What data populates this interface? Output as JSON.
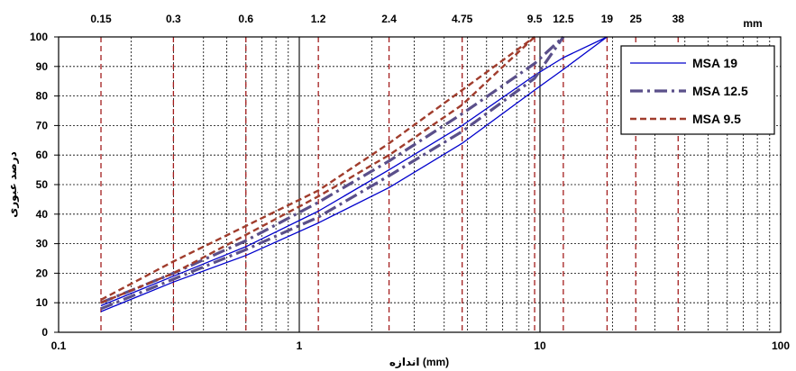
{
  "chart_data": {
    "type": "line",
    "xscale": "log",
    "xlim": [
      0.1,
      100
    ],
    "ylim": [
      0,
      100
    ],
    "xlabel": "اندازه (mm)",
    "ylabel": "درصد عبوری",
    "x_ticks": [
      "0.1",
      "1",
      "10",
      "100"
    ],
    "y_ticks": [
      "0",
      "10",
      "20",
      "30",
      "40",
      "50",
      "60",
      "70",
      "80",
      "90",
      "100"
    ],
    "top_unit": "mm",
    "sieve_sizes": [
      {
        "value": 0.15,
        "label": "0.15"
      },
      {
        "value": 0.3,
        "label": "0.3"
      },
      {
        "value": 0.6,
        "label": "0.6"
      },
      {
        "value": 1.2,
        "label": "1.2"
      },
      {
        "value": 2.36,
        "label": "2.4"
      },
      {
        "value": 4.75,
        "label": "4.75"
      },
      {
        "value": 9.5,
        "label": "9.5"
      },
      {
        "value": 12.5,
        "label": "12.5"
      },
      {
        "value": 19,
        "label": "19"
      },
      {
        "value": 25,
        "label": "25"
      },
      {
        "value": 37.5,
        "label": "38"
      }
    ],
    "grid": true,
    "legend_position": "top-right",
    "series": [
      {
        "name": "MSA 19",
        "color": "#0000cc",
        "style": "solid",
        "x": [
          0.15,
          0.3,
          0.6,
          1.2,
          2.36,
          4.75,
          9.5,
          12.5,
          19
        ],
        "lines": [
          [
            7,
            17,
            26,
            37,
            49,
            64,
            82,
            89,
            100
          ],
          [
            9,
            19,
            29,
            41,
            55,
            70,
            87,
            93,
            100
          ]
        ]
      },
      {
        "name": "MSA 12.5",
        "color": "#5a4f8a",
        "style": "dashdot",
        "x": [
          0.15,
          0.3,
          0.6,
          1.2,
          2.36,
          4.75,
          9.5,
          12.5
        ],
        "lines": [
          [
            8,
            18,
            28,
            39,
            53,
            68,
            86,
            100
          ],
          [
            10,
            20,
            31,
            44,
            58,
            74,
            91,
            100
          ]
        ]
      },
      {
        "name": "MSA 9.5",
        "color": "#a03c2c",
        "style": "dashed",
        "x": [
          0.15,
          0.3,
          0.6,
          1.2,
          2.36,
          4.75,
          9.5
        ],
        "lines": [
          [
            10,
            20,
            33,
            46,
            60,
            77,
            100
          ],
          [
            11,
            24,
            36,
            48,
            64,
            82,
            100
          ]
        ]
      }
    ]
  }
}
